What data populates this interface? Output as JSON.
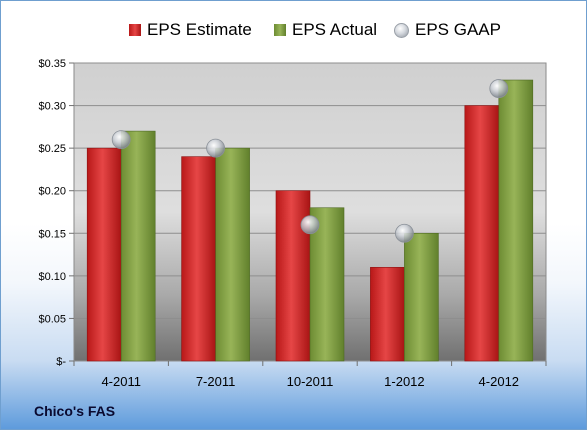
{
  "company_name": "Chico's FAS",
  "legend": {
    "estimate": "EPS Estimate",
    "actual": "EPS Actual",
    "gaap": "EPS GAAP"
  },
  "colors": {
    "estimate": "#cc1f1f",
    "actual": "#7a9a3c",
    "gaap": "#c0c4ca"
  },
  "chart_data": {
    "type": "bar",
    "categories": [
      "4-2011",
      "7-2011",
      "10-2011",
      "1-2012",
      "4-2012"
    ],
    "series": [
      {
        "name": "EPS Estimate",
        "values": [
          0.25,
          0.24,
          0.2,
          0.11,
          0.3
        ]
      },
      {
        "name": "EPS Actual",
        "values": [
          0.27,
          0.25,
          0.18,
          0.15,
          0.33
        ]
      },
      {
        "name": "EPS GAAP",
        "values": [
          0.26,
          0.25,
          0.16,
          0.15,
          0.32
        ]
      }
    ],
    "ylim": [
      0,
      0.35
    ],
    "yticks": [
      0,
      0.05,
      0.1,
      0.15,
      0.2,
      0.25,
      0.3,
      0.35
    ],
    "ytick_labels": [
      "$-",
      "$0.05",
      "$0.10",
      "$0.15",
      "$0.20",
      "$0.25",
      "$0.30",
      "$0.35"
    ],
    "grid": true,
    "legend_position": "top"
  }
}
